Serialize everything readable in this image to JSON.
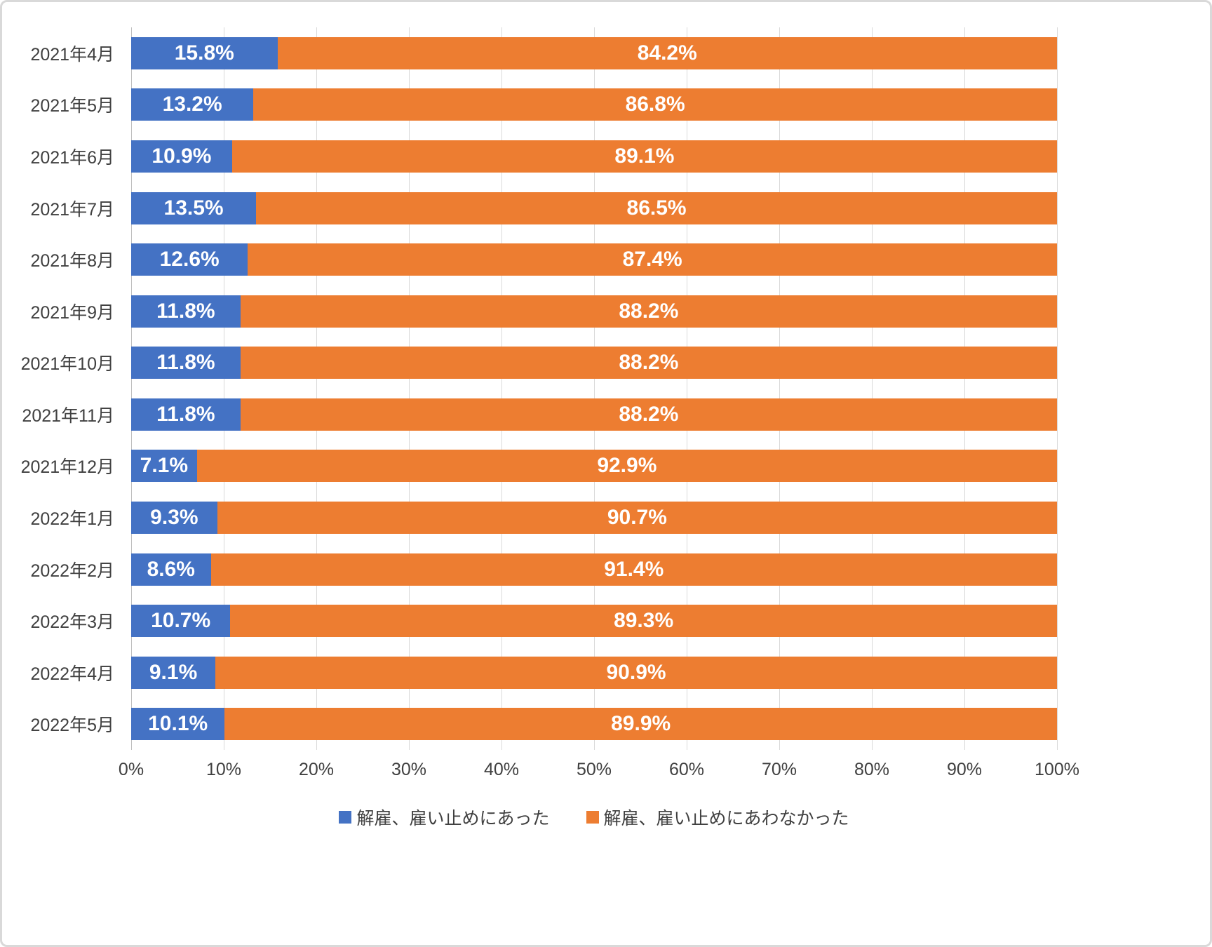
{
  "chart_data": {
    "type": "bar",
    "subtype": "stacked-horizontal-100",
    "title": "",
    "xlabel": "",
    "ylabel": "",
    "xlim": [
      0,
      100
    ],
    "grid": "vertical",
    "legend_position": "bottom",
    "grid_color": "#d9d9d9",
    "bar_label_color": "#ffffff",
    "categories": [
      "2021年4月",
      "2021年5月",
      "2021年6月",
      "2021年7月",
      "2021年8月",
      "2021年9月",
      "2021年10月",
      "2021年11月",
      "2021年12月",
      "2022年1月",
      "2022年2月",
      "2022年3月",
      "2022年4月",
      "2022年5月"
    ],
    "series": [
      {
        "name": "解雇、雇い止めにあった",
        "color": "#4472C4",
        "values": [
          15.8,
          13.2,
          10.9,
          13.5,
          12.6,
          11.8,
          11.8,
          11.8,
          7.1,
          9.3,
          8.6,
          10.7,
          9.1,
          10.1
        ]
      },
      {
        "name": "解雇、雇い止めにあわなかった",
        "color": "#ED7D31",
        "values": [
          84.2,
          86.8,
          89.1,
          86.5,
          87.4,
          88.2,
          88.2,
          88.2,
          92.9,
          90.7,
          91.4,
          89.3,
          90.9,
          89.9
        ]
      }
    ],
    "x_ticks": [
      "0%",
      "10%",
      "20%",
      "30%",
      "40%",
      "50%",
      "60%",
      "70%",
      "80%",
      "90%",
      "100%"
    ]
  }
}
